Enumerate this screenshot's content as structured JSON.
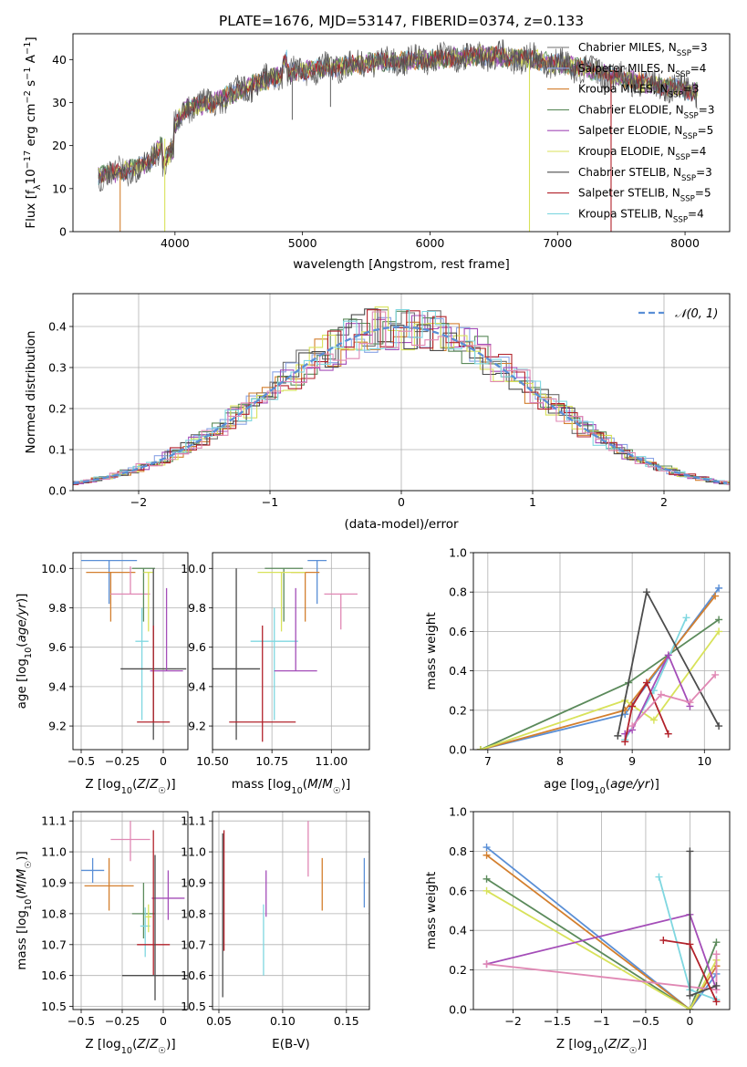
{
  "figure_title": "PLATE=1676, MJD=53147, FIBERID=0374, z=0.133",
  "colors": {
    "chabrier_miles": "#6f6f6f",
    "salpeter_miles": "#8aa4e6",
    "kroupa_miles": "#d37f2e",
    "chabrier_elodie": "#5b8a5b",
    "salpeter_elodie": "#a44db8",
    "kroupa_elodie": "#d8e25a",
    "chabrier_stelib": "#4c4c4c",
    "salpeter_stelib": "#b2222b",
    "kroupa_stelib": "#7fd7e0",
    "pink": "#e088b4",
    "gaussian": "#5a8fd6",
    "grid": "#b0b0b0"
  },
  "chart_data": [
    {
      "id": "spectrum",
      "type": "line",
      "title": "PLATE=1676, MJD=53147, FIBERID=0374, z=0.133",
      "xlabel": "wavelength [Angstrom, rest frame]",
      "ylabel": "Flux [f_λ10^-17 erg cm^-2 s^-1 A^-1]",
      "xlim": [
        3200,
        8350
      ],
      "ylim": [
        0,
        46
      ],
      "xticks": [
        4000,
        5000,
        6000,
        7000,
        8000
      ],
      "yticks": [
        0,
        10,
        20,
        30,
        40
      ],
      "grid": false,
      "legend_position": "right",
      "legend": [
        {
          "prefix": "Chabrier MILES, N",
          "sub": "SSP",
          "suffix": "=3",
          "color": "#6f6f6f"
        },
        {
          "prefix": "Salpeter MILES, N",
          "sub": "SSP",
          "suffix": "=4",
          "color": "#8aa4e6"
        },
        {
          "prefix": "Kroupa MILES, N",
          "sub": "SSP",
          "suffix": "=3",
          "color": "#d37f2e"
        },
        {
          "prefix": "Chabrier ELODIE, N",
          "sub": "SSP",
          "suffix": "=3",
          "color": "#5b8a5b"
        },
        {
          "prefix": "Salpeter ELODIE, N",
          "sub": "SSP",
          "suffix": "=5",
          "color": "#a44db8"
        },
        {
          "prefix": "Kroupa ELODIE, N",
          "sub": "SSP",
          "suffix": "=4",
          "color": "#d8e25a"
        },
        {
          "prefix": "Chabrier STELIB, N",
          "sub": "SSP",
          "suffix": "=3",
          "color": "#4c4c4c"
        },
        {
          "prefix": "Salpeter STELIB, N",
          "sub": "SSP",
          "suffix": "=5",
          "color": "#b2222b"
        },
        {
          "prefix": "Kroupa STELIB, N",
          "sub": "SSP",
          "suffix": "=4",
          "color": "#7fd7e0"
        }
      ],
      "continuum": [
        [
          3400,
          13
        ],
        [
          3600,
          14
        ],
        [
          3800,
          16
        ],
        [
          3950,
          23
        ],
        [
          4100,
          29
        ],
        [
          4300,
          30
        ],
        [
          4600,
          34
        ],
        [
          4900,
          37
        ],
        [
          5200,
          38
        ],
        [
          5600,
          39.5
        ],
        [
          6000,
          40
        ],
        [
          6400,
          41
        ],
        [
          6800,
          40
        ],
        [
          7200,
          38
        ],
        [
          7600,
          35
        ],
        [
          8000,
          33
        ],
        [
          8100,
          32.5
        ]
      ],
      "drops": [
        {
          "x": 3570,
          "to": 0,
          "color": "#d37f2e"
        },
        {
          "x": 3920,
          "to": 0,
          "color": "#d8e25a"
        },
        {
          "x": 6780,
          "to": 0,
          "color": "#d8e25a"
        },
        {
          "x": 7420,
          "to": 0,
          "color": "#b2222b"
        },
        {
          "x": 5220,
          "to": 29,
          "color": "#6f6f6f"
        },
        {
          "x": 4920,
          "to": 26,
          "color": "#6f6f6f"
        }
      ]
    },
    {
      "id": "residual_hist",
      "type": "bar",
      "xlabel": "(data-model)/error",
      "ylabel": "Normed distribution",
      "xlim": [
        -2.5,
        2.5
      ],
      "ylim": [
        0,
        0.48
      ],
      "xticks": [
        -2,
        -1,
        0,
        1,
        2
      ],
      "yticks": [
        0.0,
        0.1,
        0.2,
        0.3,
        0.4
      ],
      "grid": true,
      "legend_position": "top-right",
      "legend": [
        {
          "label": "𝒩(0, 1)",
          "color": "#5a8fd6"
        }
      ],
      "reference_curve": {
        "name": "𝒩(0, 1)",
        "mu": 0,
        "sigma": 1
      },
      "bin_width": 0.1,
      "series_colors": [
        "#6f6f6f",
        "#8aa4e6",
        "#d37f2e",
        "#5b8a5b",
        "#a44db8",
        "#d8e25a",
        "#4c4c4c",
        "#b2222b",
        "#7fd7e0",
        "#e088b4"
      ]
    },
    {
      "id": "age_vs_Z",
      "type": "scatter",
      "xlabel": "Z [log10(Z/Z☉)]",
      "ylabel": "age [log10(age/yr)]",
      "xlim": [
        -0.55,
        0.15
      ],
      "ylim": [
        9.08,
        10.08
      ],
      "xticks": [
        -0.5,
        -0.25,
        0.0
      ],
      "yticks": [
        9.2,
        9.4,
        9.6,
        9.8,
        10.0
      ],
      "grid": true,
      "errorbars": [
        {
          "color": "#5a8fd6",
          "x": -0.33,
          "xerr": 0.17,
          "y": 10.04,
          "yerr": [
            0.22,
            0.0
          ]
        },
        {
          "color": "#d37f2e",
          "x": -0.32,
          "xerr": 0.15,
          "y": 9.98,
          "yerr": [
            0.25,
            0.0
          ]
        },
        {
          "color": "#e088b4",
          "x": -0.2,
          "xerr": 0.12,
          "y": 9.87,
          "yerr": [
            0.0,
            0.14
          ]
        },
        {
          "color": "#5b8a5b",
          "x": -0.12,
          "xerr": 0.07,
          "y": 10.0,
          "yerr": [
            0.27,
            0.0
          ]
        },
        {
          "color": "#d8e25a",
          "x": -0.09,
          "xerr": 0.03,
          "y": 9.98,
          "yerr": [
            0.3,
            0.0
          ]
        },
        {
          "color": "#7fd7e0",
          "x": -0.13,
          "xerr": 0.04,
          "y": 9.63,
          "yerr": [
            0.4,
            0.17
          ]
        },
        {
          "color": "#4c4c4c",
          "x": -0.06,
          "xerr": 0.2,
          "y": 9.49,
          "yerr": [
            0.36,
            0.51
          ]
        },
        {
          "color": "#a44db8",
          "x": 0.02,
          "xerr": 0.1,
          "y": 9.48,
          "yerr": [
            0.0,
            0.42
          ]
        },
        {
          "color": "#b2222b",
          "x": -0.06,
          "xerr": 0.1,
          "y": 9.22,
          "yerr": [
            0.0,
            0.49
          ]
        }
      ]
    },
    {
      "id": "age_vs_mass",
      "type": "scatter",
      "xlabel": "mass [log10(M/M☉)]",
      "ylabel": "",
      "xlim": [
        10.5,
        11.16
      ],
      "ylim": [
        9.08,
        10.08
      ],
      "xticks": [
        10.5,
        10.75,
        11.0
      ],
      "xticklabels": [
        "10.50",
        "10.75",
        "11.00"
      ],
      "yticks": [
        9.2,
        9.4,
        9.6,
        9.8,
        10.0
      ],
      "grid": true,
      "errorbars": [
        {
          "color": "#5a8fd6",
          "x": 10.94,
          "xerr": 0.04,
          "y": 10.04,
          "yerr": [
            0.22,
            0.0
          ]
        },
        {
          "color": "#d37f2e",
          "x": 10.89,
          "xerr": 0.06,
          "y": 9.98,
          "yerr": [
            0.25,
            0.0
          ]
        },
        {
          "color": "#e088b4",
          "x": 11.04,
          "xerr": 0.07,
          "y": 9.87,
          "yerr": [
            0.18,
            0.0
          ]
        },
        {
          "color": "#5b8a5b",
          "x": 10.8,
          "xerr": 0.08,
          "y": 10.0,
          "yerr": [
            0.27,
            0.0
          ]
        },
        {
          "color": "#d8e25a",
          "x": 10.79,
          "xerr": 0.1,
          "y": 9.98,
          "yerr": [
            0.3,
            0.0
          ]
        },
        {
          "color": "#7fd7e0",
          "x": 10.76,
          "xerr": 0.1,
          "y": 9.63,
          "yerr": [
            0.4,
            0.17
          ]
        },
        {
          "color": "#4c4c4c",
          "x": 10.6,
          "xerr": 0.1,
          "y": 9.49,
          "yerr": [
            0.36,
            0.51
          ]
        },
        {
          "color": "#a44db8",
          "x": 10.85,
          "xerr": 0.09,
          "y": 9.48,
          "yerr": [
            0.0,
            0.42
          ]
        },
        {
          "color": "#b2222b",
          "x": 10.71,
          "xerr": 0.14,
          "y": 9.22,
          "yerr": [
            0.1,
            0.49
          ]
        }
      ]
    },
    {
      "id": "mass_weight_vs_age",
      "type": "line",
      "xlabel": "age [log10(age/yr)]",
      "ylabel": "mass weight",
      "xlim": [
        6.8,
        10.35
      ],
      "ylim": [
        0.0,
        1.0
      ],
      "xticks": [
        7,
        8,
        9,
        10
      ],
      "yticks": [
        0.0,
        0.2,
        0.4,
        0.6,
        0.8,
        1.0
      ],
      "grid": true,
      "series": [
        {
          "color": "#5a8fd6",
          "x": [
            6.9,
            8.9,
            10.2
          ],
          "y": [
            0.0,
            0.18,
            0.82
          ]
        },
        {
          "color": "#d37f2e",
          "x": [
            6.9,
            8.9,
            10.15
          ],
          "y": [
            0.0,
            0.2,
            0.78
          ]
        },
        {
          "color": "#5b8a5b",
          "x": [
            6.9,
            8.95,
            10.2
          ],
          "y": [
            0.0,
            0.34,
            0.66
          ]
        },
        {
          "color": "#d8e25a",
          "x": [
            6.9,
            8.9,
            9.3,
            10.2
          ],
          "y": [
            0.0,
            0.25,
            0.15,
            0.6
          ]
        },
        {
          "color": "#7fd7e0",
          "x": [
            8.9,
            9.3,
            9.75
          ],
          "y": [
            0.05,
            0.3,
            0.67
          ]
        },
        {
          "color": "#4c4c4c",
          "x": [
            8.8,
            9.2,
            10.2
          ],
          "y": [
            0.07,
            0.8,
            0.12
          ]
        },
        {
          "color": "#a44db8",
          "x": [
            8.9,
            9.0,
            9.5,
            9.8
          ],
          "y": [
            0.08,
            0.1,
            0.48,
            0.22
          ]
        },
        {
          "color": "#b2222b",
          "x": [
            8.9,
            9.0,
            9.2,
            9.5
          ],
          "y": [
            0.04,
            0.22,
            0.34,
            0.08
          ]
        },
        {
          "color": "#e088b4",
          "x": [
            9.0,
            9.4,
            9.8,
            10.15
          ],
          "y": [
            0.12,
            0.28,
            0.24,
            0.38
          ]
        }
      ]
    },
    {
      "id": "mass_vs_Z",
      "type": "scatter",
      "xlabel": "Z [log10(Z/Z☉)]",
      "ylabel": "mass [log10(M/M☉)]",
      "xlim": [
        -0.55,
        0.15
      ],
      "ylim": [
        10.49,
        11.13
      ],
      "xticks": [
        -0.5,
        -0.25,
        0.0
      ],
      "yticks": [
        10.5,
        10.6,
        10.7,
        10.8,
        10.9,
        11.0,
        11.1
      ],
      "grid": true,
      "errorbars": [
        {
          "color": "#5a8fd6",
          "x": -0.43,
          "xerr": 0.07,
          "y": 10.94,
          "yerr": [
            0.04,
            0.04
          ]
        },
        {
          "color": "#d37f2e",
          "x": -0.33,
          "xerr": 0.15,
          "y": 10.89,
          "yerr": [
            0.08,
            0.09
          ]
        },
        {
          "color": "#e088b4",
          "x": -0.2,
          "xerr": 0.12,
          "y": 11.04,
          "yerr": [
            0.07,
            0.06
          ]
        },
        {
          "color": "#5b8a5b",
          "x": -0.12,
          "xerr": 0.07,
          "y": 10.8,
          "yerr": [
            0.08,
            0.1
          ]
        },
        {
          "color": "#7fd7e0",
          "x": -0.11,
          "xerr": 0.03,
          "y": 10.76,
          "yerr": [
            0.1,
            0.06
          ]
        },
        {
          "color": "#a44db8",
          "x": 0.03,
          "xerr": 0.1,
          "y": 10.85,
          "yerr": [
            0.07,
            0.09
          ]
        },
        {
          "color": "#b2222b",
          "x": -0.06,
          "xerr": 0.1,
          "y": 10.7,
          "yerr": [
            0.1,
            0.37
          ]
        },
        {
          "color": "#4c4c4c",
          "x": -0.05,
          "xerr": 0.2,
          "y": 10.6,
          "yerr": [
            0.08,
            0.39
          ]
        },
        {
          "color": "#d8e25a",
          "x": -0.09,
          "xerr": 0.02,
          "y": 10.79,
          "yerr": [
            0.05,
            0.04
          ]
        }
      ]
    },
    {
      "id": "mass_vs_EBV",
      "type": "scatter",
      "xlabel": "E(B-V)",
      "ylabel": "",
      "xlim": [
        0.045,
        0.168
      ],
      "ylim": [
        10.49,
        11.13
      ],
      "xticks": [
        0.05,
        0.1,
        0.15
      ],
      "xticklabels": [
        "0.05",
        "0.10",
        "0.15"
      ],
      "yticks": [
        10.5,
        10.6,
        10.7,
        10.8,
        10.9,
        11.0,
        11.1
      ],
      "grid": true,
      "errorbars": [
        {
          "color": "#5a8fd6",
          "x": 0.164,
          "y": 10.9,
          "yerr": [
            0.08,
            0.08
          ]
        },
        {
          "color": "#d37f2e",
          "x": 0.131,
          "y": 10.9,
          "yerr": [
            0.09,
            0.08
          ]
        },
        {
          "color": "#e088b4",
          "x": 0.12,
          "y": 11.02,
          "yerr": [
            0.1,
            0.08
          ]
        },
        {
          "color": "#a44db8",
          "x": 0.087,
          "y": 10.86,
          "yerr": [
            0.07,
            0.08
          ]
        },
        {
          "color": "#7fd7e0",
          "x": 0.085,
          "y": 10.7,
          "yerr": [
            0.1,
            0.13
          ]
        },
        {
          "color": "#4c4c4c",
          "x": 0.053,
          "y": 10.8,
          "yerr": [
            0.27,
            0.26
          ]
        },
        {
          "color": "#b2222b",
          "x": 0.054,
          "y": 10.9,
          "yerr": [
            0.22,
            0.17
          ]
        }
      ]
    },
    {
      "id": "mass_weight_vs_Z",
      "type": "line",
      "xlabel": "Z [log10(Z/Z☉)]",
      "ylabel": "mass weight",
      "xlim": [
        -2.45,
        0.45
      ],
      "ylim": [
        0.0,
        1.0
      ],
      "xticks": [
        -2.0,
        -1.5,
        -1.0,
        -0.5,
        0.0
      ],
      "yticks": [
        0.0,
        0.2,
        0.4,
        0.6,
        0.8,
        1.0
      ],
      "grid": true,
      "series": [
        {
          "color": "#5a8fd6",
          "x": [
            -2.3,
            0.0,
            0.3
          ],
          "y": [
            0.82,
            0.0,
            0.18
          ]
        },
        {
          "color": "#d37f2e",
          "x": [
            -2.3,
            0.0,
            0.3
          ],
          "y": [
            0.78,
            0.0,
            0.22
          ]
        },
        {
          "color": "#5b8a5b",
          "x": [
            -2.3,
            0.0,
            0.3
          ],
          "y": [
            0.66,
            0.0,
            0.34
          ]
        },
        {
          "color": "#d8e25a",
          "x": [
            -2.3,
            0.0,
            0.3
          ],
          "y": [
            0.6,
            0.0,
            0.25
          ]
        },
        {
          "color": "#a44db8",
          "x": [
            -2.3,
            0.0,
            0.3
          ],
          "y": [
            0.23,
            0.48,
            0.1
          ]
        },
        {
          "color": "#e088b4",
          "x": [
            -2.3,
            0.3,
            0.3
          ],
          "y": [
            0.23,
            0.1,
            0.28
          ]
        },
        {
          "color": "#7fd7e0",
          "x": [
            -0.35,
            0.0,
            0.3
          ],
          "y": [
            0.67,
            0.1,
            0.05
          ]
        },
        {
          "color": "#4c4c4c",
          "x": [
            0.0,
            0.0,
            0.3
          ],
          "y": [
            0.8,
            0.07,
            0.12
          ]
        },
        {
          "color": "#b2222b",
          "x": [
            -0.3,
            0.0,
            0.3
          ],
          "y": [
            0.35,
            0.33,
            0.04
          ]
        }
      ]
    }
  ]
}
